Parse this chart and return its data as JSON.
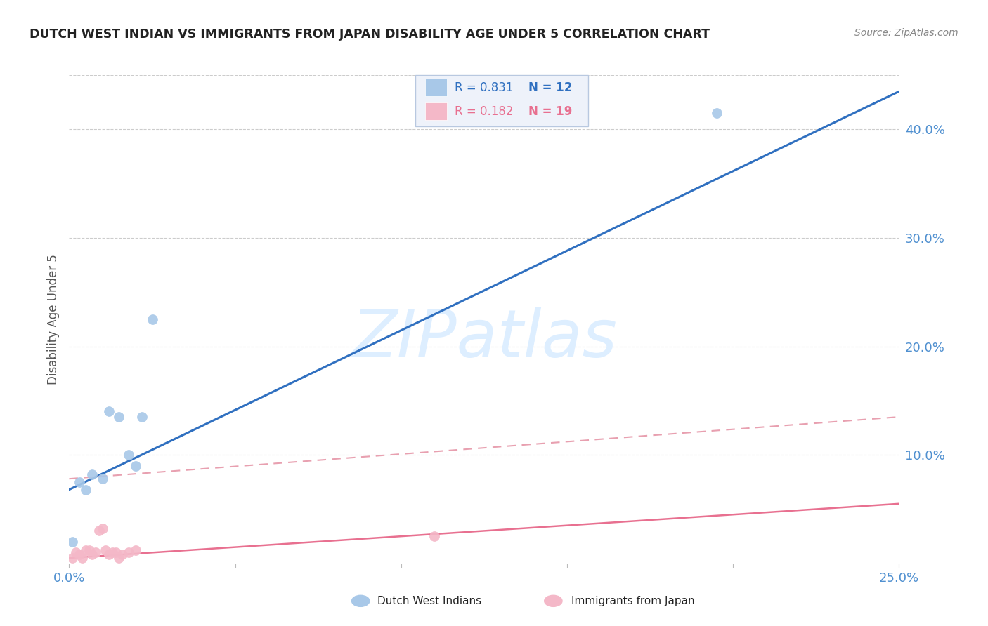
{
  "title": "DUTCH WEST INDIAN VS IMMIGRANTS FROM JAPAN DISABILITY AGE UNDER 5 CORRELATION CHART",
  "source": "Source: ZipAtlas.com",
  "ylabel": "Disability Age Under 5",
  "watermark": "ZIPatlas",
  "xlim": [
    0.0,
    0.25
  ],
  "ylim": [
    0.0,
    0.45
  ],
  "ytick_values": [
    0.0,
    0.1,
    0.2,
    0.3,
    0.4
  ],
  "xtick_values": [
    0.0,
    0.05,
    0.1,
    0.15,
    0.2,
    0.25
  ],
  "blue_scatter_x": [
    0.001,
    0.003,
    0.005,
    0.007,
    0.01,
    0.012,
    0.015,
    0.018,
    0.02,
    0.022,
    0.025,
    0.195
  ],
  "blue_scatter_y": [
    0.02,
    0.075,
    0.068,
    0.082,
    0.078,
    0.14,
    0.135,
    0.1,
    0.09,
    0.135,
    0.225,
    0.415
  ],
  "pink_scatter_x": [
    0.001,
    0.002,
    0.003,
    0.004,
    0.005,
    0.006,
    0.007,
    0.008,
    0.009,
    0.01,
    0.011,
    0.012,
    0.013,
    0.014,
    0.015,
    0.016,
    0.018,
    0.02,
    0.11
  ],
  "pink_scatter_y": [
    0.005,
    0.01,
    0.008,
    0.005,
    0.012,
    0.012,
    0.008,
    0.01,
    0.03,
    0.032,
    0.012,
    0.008,
    0.01,
    0.01,
    0.005,
    0.008,
    0.01,
    0.012,
    0.025
  ],
  "blue_line_x": [
    0.0,
    0.25
  ],
  "blue_line_y": [
    0.068,
    0.435
  ],
  "pink_solid_line_x": [
    0.0,
    0.25
  ],
  "pink_solid_line_y": [
    0.005,
    0.055
  ],
  "pink_dashed_line_x": [
    0.0,
    0.25
  ],
  "pink_dashed_line_y": [
    0.078,
    0.135
  ],
  "legend_r_blue": "R = 0.831",
  "legend_n_blue": "N = 12",
  "legend_r_pink": "R = 0.182",
  "legend_n_pink": "N = 19",
  "blue_scatter_color": "#a8c8e8",
  "pink_scatter_color": "#f4b8c8",
  "blue_line_color": "#3070c0",
  "pink_line_color": "#e87090",
  "pink_dashed_color": "#e8a0b0",
  "title_color": "#222222",
  "source_color": "#888888",
  "ylabel_color": "#555555",
  "ytick_color": "#5090d0",
  "xtick_color": "#5090d0",
  "legend_box_facecolor": "#eef2fa",
  "legend_box_edgecolor": "#b8c8e0",
  "background_color": "#ffffff",
  "grid_color": "#cccccc",
  "watermark_color": "#ddeeff",
  "bottom_legend_blue_label": "Dutch West Indians",
  "bottom_legend_pink_label": "Immigrants from Japan"
}
